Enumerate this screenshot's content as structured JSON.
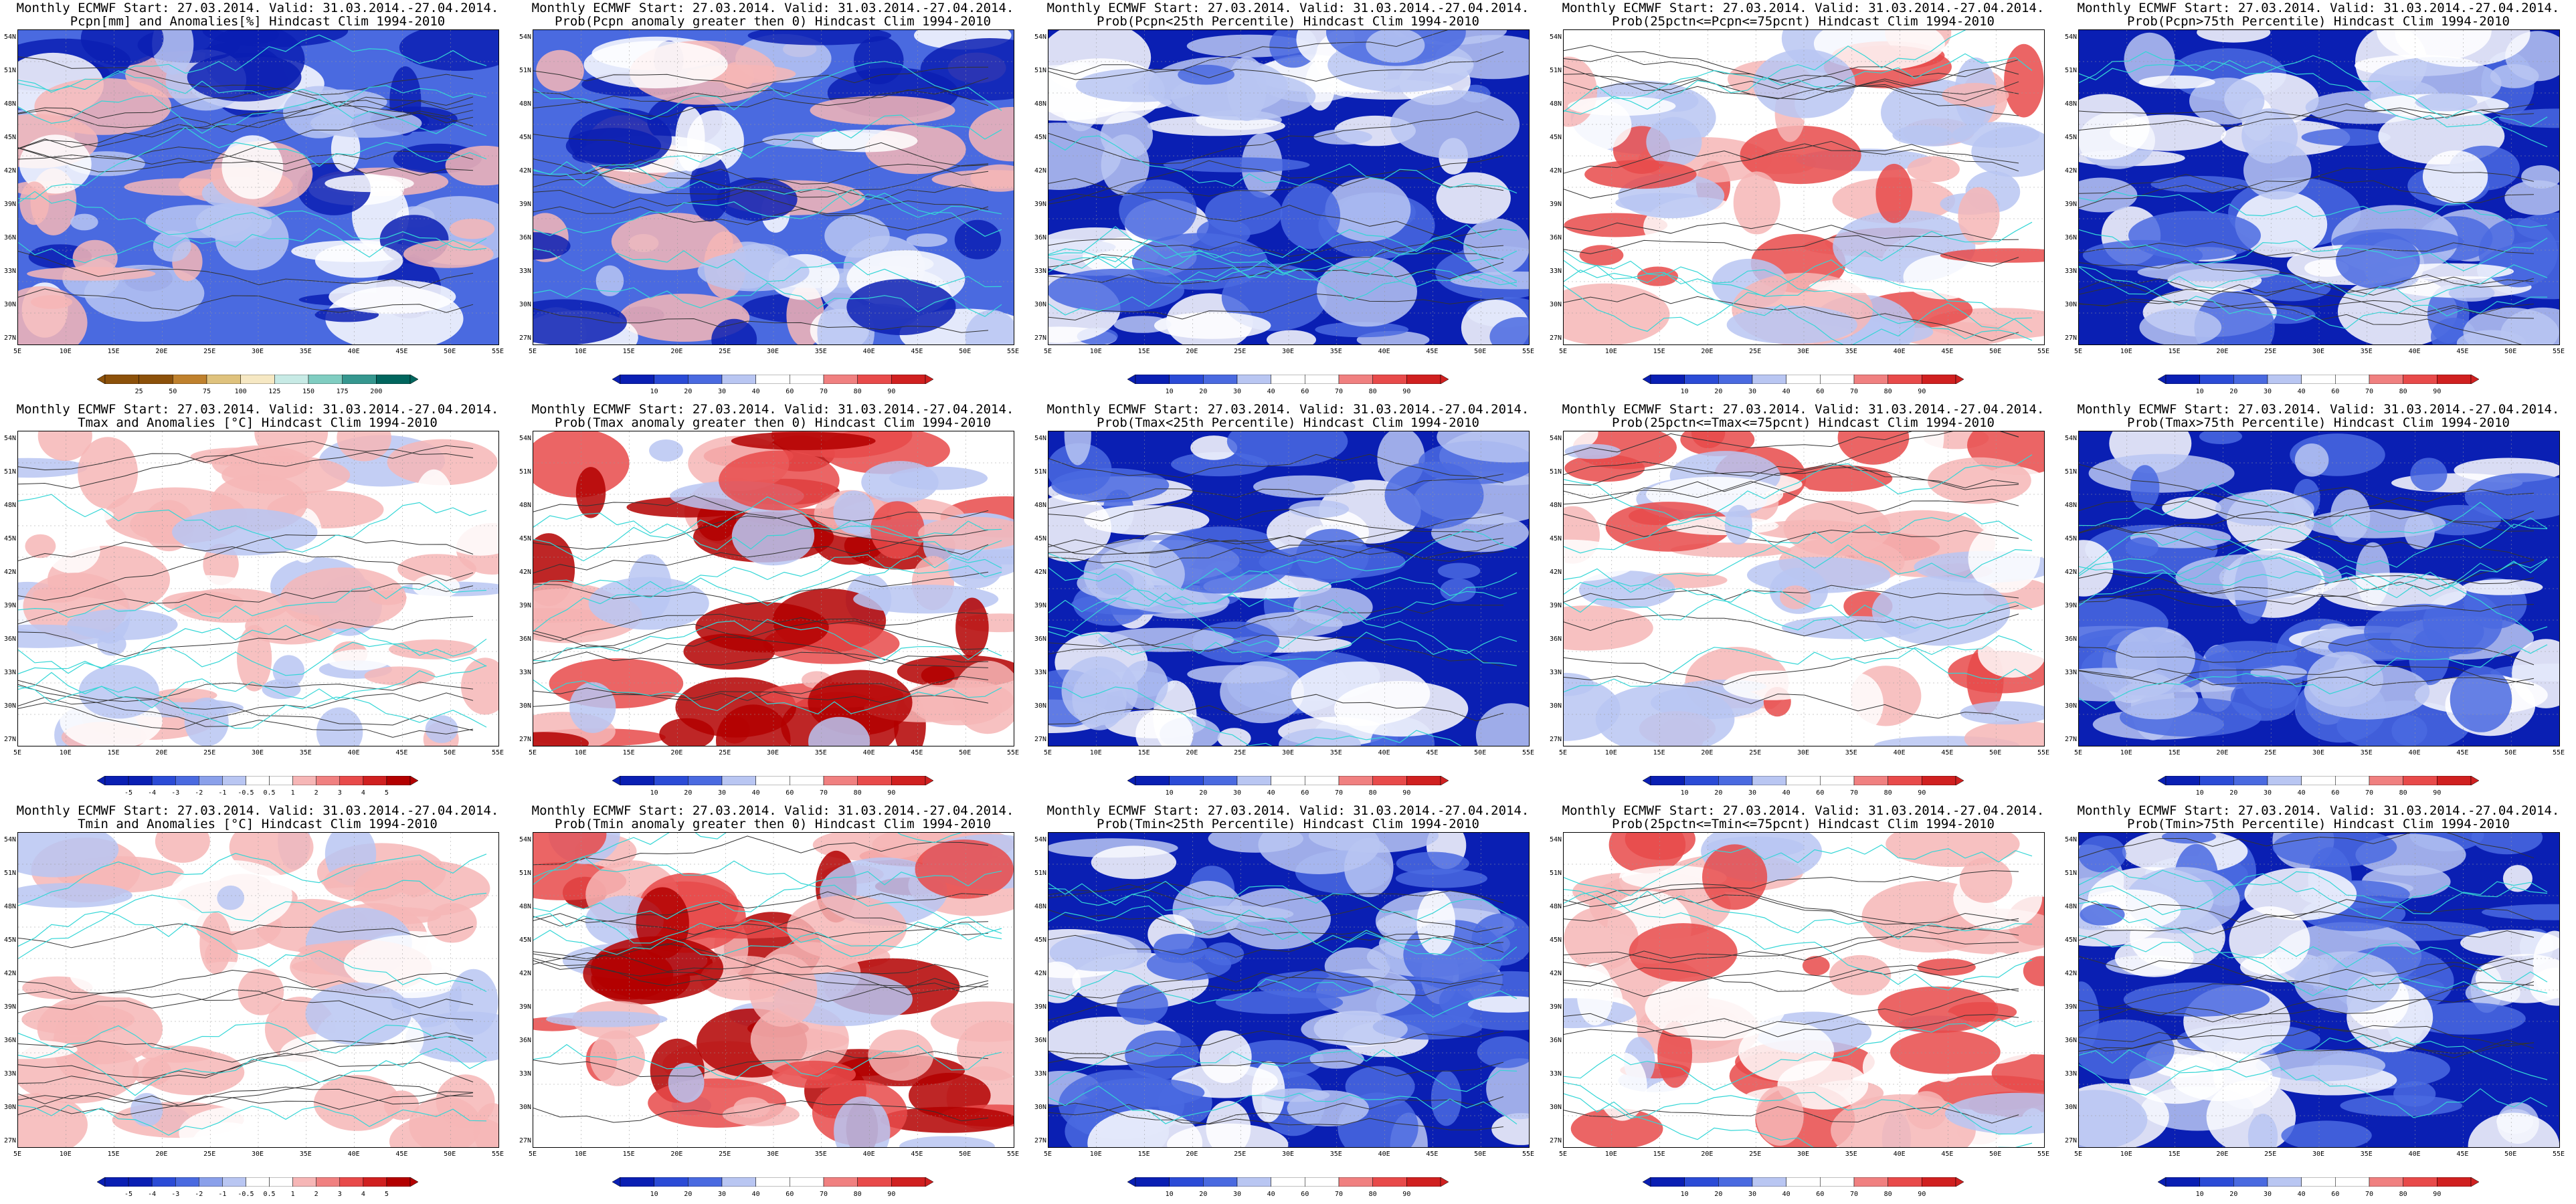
{
  "panels": [
    {
      "id": "pcpn-anom",
      "title": [
        "Monthly ECMWF Start: 27.03.2014. Valid: 31.03.2014.-27.04.2014.",
        "Pcpn[mm] and Anomalies[%] Hindcast Clim 1994-2010"
      ],
      "scheme": "brown-teal",
      "pattern": "pcpn",
      "colorbar": [
        "25",
        "50",
        "75",
        "100",
        "125",
        "150",
        "175",
        "200"
      ]
    },
    {
      "id": "pcpn-prob-gt0",
      "title": [
        "Monthly ECMWF Start: 27.03.2014. Valid: 31.03.2014.-27.04.2014.",
        "Prob(Pcpn anomaly greater then 0) Hindcast Clim 1994-2010"
      ],
      "scheme": "blue-red",
      "pattern": "pcpn",
      "colorbar": [
        "10",
        "20",
        "30",
        "40",
        "60",
        "70",
        "80",
        "90"
      ]
    },
    {
      "id": "pcpn-prob-lt25",
      "title": [
        "Monthly ECMWF Start: 27.03.2014. Valid: 31.03.2014.-27.04.2014.",
        "Prob(Pcpn<25th Percentile) Hindcast Clim 1994-2010"
      ],
      "scheme": "blue-red",
      "pattern": "blue",
      "colorbar": [
        "10",
        "20",
        "30",
        "40",
        "60",
        "70",
        "80",
        "90"
      ]
    },
    {
      "id": "pcpn-prob-mid",
      "title": [
        "Monthly ECMWF Start: 27.03.2014. Valid: 31.03.2014.-27.04.2014.",
        "Prob(25pctn<=Pcpn<=75pcnt) Hindcast Clim 1994-2010"
      ],
      "scheme": "blue-red",
      "pattern": "mid",
      "colorbar": [
        "10",
        "20",
        "30",
        "40",
        "60",
        "70",
        "80",
        "90"
      ]
    },
    {
      "id": "pcpn-prob-gt75",
      "title": [
        "Monthly ECMWF Start: 27.03.2014. Valid: 31.03.2014.-27.04.2014.",
        "Prob(Pcpn>75th Percentile) Hindcast Clim 1994-2010"
      ],
      "scheme": "blue-red",
      "pattern": "blue",
      "colorbar": [
        "10",
        "20",
        "30",
        "40",
        "60",
        "70",
        "80",
        "90"
      ]
    },
    {
      "id": "tmax-anom",
      "title": [
        "Monthly ECMWF Start: 27.03.2014. Valid: 31.03.2014.-27.04.2014.",
        "Tmax and Anomalies [°C] Hindcast Clim 1994-2010"
      ],
      "scheme": "blue-red",
      "pattern": "warm-light",
      "colorbar": [
        "-5",
        "-4",
        "-3",
        "-2",
        "-1",
        "-0.5",
        "0.5",
        "1",
        "2",
        "3",
        "4",
        "5"
      ]
    },
    {
      "id": "tmax-prob-gt0",
      "title": [
        "Monthly ECMWF Start: 27.03.2014. Valid: 31.03.2014.-27.04.2014.",
        "Prob(Tmax anomaly greater then 0) Hindcast Clim 1994-2010"
      ],
      "scheme": "blue-red",
      "pattern": "warm",
      "colorbar": [
        "10",
        "20",
        "30",
        "40",
        "60",
        "70",
        "80",
        "90"
      ]
    },
    {
      "id": "tmax-prob-lt25",
      "title": [
        "Monthly ECMWF Start: 27.03.2014. Valid: 31.03.2014.-27.04.2014.",
        "Prob(Tmax<25th Percentile) Hindcast Clim 1994-2010"
      ],
      "scheme": "blue-red",
      "pattern": "blue",
      "colorbar": [
        "10",
        "20",
        "30",
        "40",
        "60",
        "70",
        "80",
        "90"
      ]
    },
    {
      "id": "tmax-prob-mid",
      "title": [
        "Monthly ECMWF Start: 27.03.2014. Valid: 31.03.2014.-27.04.2014.",
        "Prob(25pctn<=Tmax<=75pcnt) Hindcast Clim 1994-2010"
      ],
      "scheme": "blue-red",
      "pattern": "mid",
      "colorbar": [
        "10",
        "20",
        "30",
        "40",
        "60",
        "70",
        "80",
        "90"
      ]
    },
    {
      "id": "tmax-prob-gt75",
      "title": [
        "Monthly ECMWF Start: 27.03.2014. Valid: 31.03.2014.-27.04.2014.",
        "Prob(Tmax>75th Percentile) Hindcast Clim 1994-2010"
      ],
      "scheme": "blue-red",
      "pattern": "blue",
      "colorbar": [
        "10",
        "20",
        "30",
        "40",
        "60",
        "70",
        "80",
        "90"
      ]
    },
    {
      "id": "tmin-anom",
      "title": [
        "Monthly ECMWF Start: 27.03.2014. Valid: 31.03.2014.-27.04.2014.",
        "Tmin and Anomalies [°C] Hindcast Clim 1994-2010"
      ],
      "scheme": "blue-red",
      "pattern": "warm-light",
      "colorbar": [
        "-5",
        "-4",
        "-3",
        "-2",
        "-1",
        "-0.5",
        "0.5",
        "1",
        "2",
        "3",
        "4",
        "5"
      ]
    },
    {
      "id": "tmin-prob-gt0",
      "title": [
        "Monthly ECMWF Start: 27.03.2014. Valid: 31.03.2014.-27.04.2014.",
        "Prob(Tmin anomaly greater then 0) Hindcast Clim 1994-2010"
      ],
      "scheme": "blue-red",
      "pattern": "warm",
      "colorbar": [
        "10",
        "20",
        "30",
        "40",
        "60",
        "70",
        "80",
        "90"
      ]
    },
    {
      "id": "tmin-prob-lt25",
      "title": [
        "Monthly ECMWF Start: 27.03.2014. Valid: 31.03.2014.-27.04.2014.",
        "Prob(Tmin<25th Percentile) Hindcast Clim 1994-2010"
      ],
      "scheme": "blue-red",
      "pattern": "blue",
      "colorbar": [
        "10",
        "20",
        "30",
        "40",
        "60",
        "70",
        "80",
        "90"
      ]
    },
    {
      "id": "tmin-prob-mid",
      "title": [
        "Monthly ECMWF Start: 27.03.2014. Valid: 31.03.2014.-27.04.2014.",
        "Prob(25pctn<=Tmin<=75pcnt) Hindcast Clim 1994-2010"
      ],
      "scheme": "blue-red",
      "pattern": "mid",
      "colorbar": [
        "10",
        "20",
        "30",
        "40",
        "60",
        "70",
        "80",
        "90"
      ]
    },
    {
      "id": "tmin-prob-gt75",
      "title": [
        "Monthly ECMWF Start: 27.03.2014. Valid: 31.03.2014.-27.04.2014.",
        "Prob(Tmin>75th Percentile) Hindcast Clim 1994-2010"
      ],
      "scheme": "blue-red",
      "pattern": "blue",
      "colorbar": [
        "10",
        "20",
        "30",
        "40",
        "60",
        "70",
        "80",
        "90"
      ]
    }
  ],
  "axes": {
    "lat_labels": [
      "54N",
      "51N",
      "48N",
      "45N",
      "42N",
      "39N",
      "36N",
      "33N",
      "30N",
      "27N"
    ],
    "lon_labels": [
      "5E",
      "10E",
      "15E",
      "20E",
      "25E",
      "30E",
      "35E",
      "40E",
      "45E",
      "50E",
      "55E"
    ]
  },
  "colors": {
    "deep_blue": "#0a1fb3",
    "mid_blue": "#4a6ae0",
    "light_blue": "#b9c6f2",
    "white": "#ffffff",
    "light_red": "#f6b6b6",
    "mid_red": "#e84a4a",
    "deep_red": "#b30000",
    "coast": "#34d6d6",
    "contour": "#333333"
  }
}
